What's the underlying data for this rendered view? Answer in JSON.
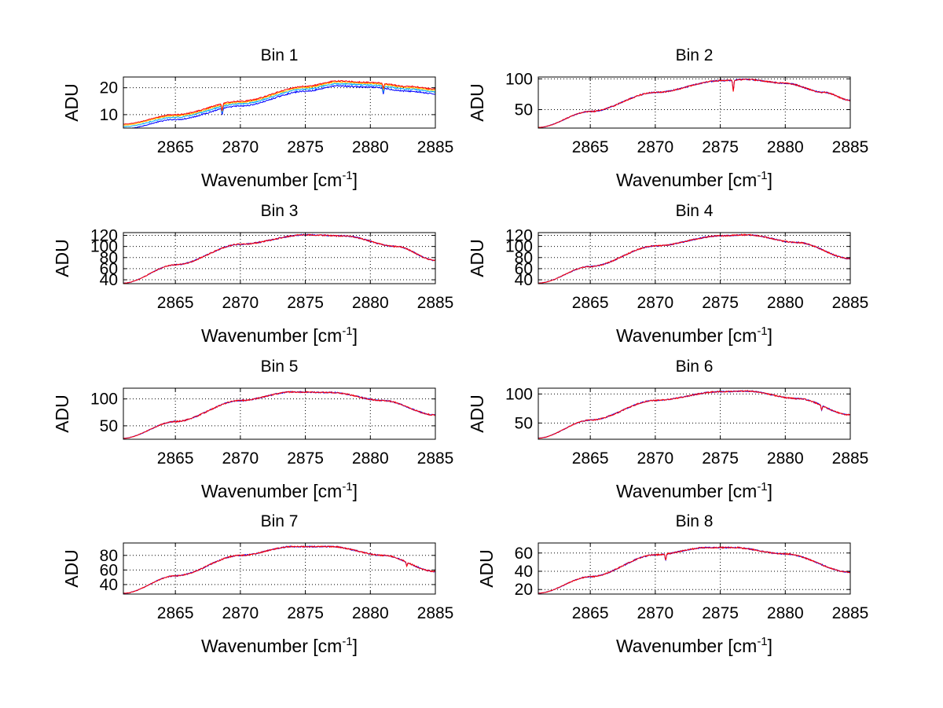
{
  "figure": {
    "background": "#ffffff",
    "grid_color": "#000000",
    "x_tick_labels": [
      "2865",
      "2870",
      "2875",
      "2880",
      "2885"
    ]
  },
  "chart_data": [
    {
      "type": "line",
      "title": "Bin 1",
      "xlabel_base": "Wavenumber [cm",
      "xlabel_sup": "-1",
      "xlabel_end": "]",
      "ylabel": "ADU",
      "xlim": [
        2861,
        2885
      ],
      "ylim": [
        5,
        24
      ],
      "xticks": [
        2865,
        2870,
        2875,
        2880,
        2885
      ],
      "yticks": [
        10,
        20
      ],
      "grid": true,
      "profile": {
        "x": [
          2861,
          2865,
          2870,
          2875,
          2877.5,
          2880,
          2883,
          2885
        ],
        "y": [
          5.5,
          9,
          14,
          19.5,
          21.5,
          21,
          19.5,
          18.5
        ]
      },
      "series": [
        {
          "name": "series 1",
          "color": "#0000ff",
          "offset": -0.8
        },
        {
          "name": "series 2",
          "color": "#00aaff",
          "offset": 0
        },
        {
          "name": "series 3",
          "color": "#ffcc00",
          "offset": 0.6
        },
        {
          "name": "series 4",
          "color": "#ff0000",
          "offset": 1.0
        }
      ],
      "dips": [
        {
          "x": 2868.6,
          "depth": 2.5
        },
        {
          "x": 2881,
          "depth": 2
        }
      ]
    },
    {
      "type": "line",
      "title": "Bin 2",
      "xlabel_base": "Wavenumber [cm",
      "xlabel_sup": "-1",
      "xlabel_end": "]",
      "ylabel": "ADU",
      "xlim": [
        2861,
        2885
      ],
      "ylim": [
        20,
        103
      ],
      "xticks": [
        2865,
        2870,
        2875,
        2880,
        2885
      ],
      "yticks": [
        50,
        100
      ],
      "grid": true,
      "profile": {
        "x": [
          2861,
          2865,
          2870,
          2875,
          2877,
          2880,
          2883,
          2885
        ],
        "y": [
          21,
          47,
          78,
          97,
          99,
          93,
          78,
          65
        ]
      },
      "series": [
        {
          "name": "series 1",
          "color": "#0000ff",
          "offset": 0
        },
        {
          "name": "series 2",
          "color": "#ff0000",
          "offset": 0
        }
      ],
      "dips": [
        {
          "x": 2876,
          "depth": 18
        }
      ]
    },
    {
      "type": "line",
      "title": "Bin 3",
      "xlabel_base": "Wavenumber [cm",
      "xlabel_sup": "-1",
      "xlabel_end": "]",
      "ylabel": "ADU",
      "xlim": [
        2861,
        2885
      ],
      "ylim": [
        33,
        125
      ],
      "xticks": [
        2865,
        2870,
        2875,
        2880,
        2885
      ],
      "yticks": [
        40,
        60,
        80,
        100,
        120
      ],
      "grid": true,
      "profile": {
        "x": [
          2861,
          2865,
          2870,
          2875,
          2878,
          2882,
          2885
        ],
        "y": [
          34,
          67,
          104,
          121,
          119,
          100,
          75
        ]
      },
      "series": [
        {
          "name": "series 1",
          "color": "#0000ff",
          "offset": 0
        },
        {
          "name": "series 2",
          "color": "#ff0000",
          "offset": 0
        }
      ],
      "dips": []
    },
    {
      "type": "line",
      "title": "Bin 4",
      "xlabel_base": "Wavenumber [cm",
      "xlabel_sup": "-1",
      "xlabel_end": "]",
      "ylabel": "ADU",
      "xlim": [
        2861,
        2885
      ],
      "ylim": [
        33,
        125
      ],
      "xticks": [
        2865,
        2870,
        2875,
        2880,
        2885
      ],
      "yticks": [
        40,
        60,
        80,
        100,
        120
      ],
      "grid": true,
      "profile": {
        "x": [
          2861,
          2865,
          2870,
          2875,
          2877,
          2881,
          2885
        ],
        "y": [
          34,
          64,
          101,
          119,
          121,
          107,
          78
        ]
      },
      "series": [
        {
          "name": "series 1",
          "color": "#0000ff",
          "offset": 0
        },
        {
          "name": "series 2",
          "color": "#ff0000",
          "offset": 0
        }
      ],
      "dips": []
    },
    {
      "type": "line",
      "title": "Bin 5",
      "xlabel_base": "Wavenumber [cm",
      "xlabel_sup": "-1",
      "xlabel_end": "]",
      "ylabel": "ADU",
      "xlim": [
        2861,
        2885
      ],
      "ylim": [
        25,
        120
      ],
      "xticks": [
        2865,
        2870,
        2875,
        2880,
        2885
      ],
      "yticks": [
        50,
        100
      ],
      "grid": true,
      "profile": {
        "x": [
          2861,
          2865,
          2870,
          2874,
          2877,
          2881,
          2885
        ],
        "y": [
          27,
          58,
          97,
          113,
          112,
          97,
          70
        ]
      },
      "series": [
        {
          "name": "series 1",
          "color": "#0000ff",
          "offset": 0
        },
        {
          "name": "series 2",
          "color": "#ff0000",
          "offset": 0
        }
      ],
      "dips": []
    },
    {
      "type": "line",
      "title": "Bin 6",
      "xlabel_base": "Wavenumber [cm",
      "xlabel_sup": "-1",
      "xlabel_end": "]",
      "ylabel": "ADU",
      "xlim": [
        2861,
        2885
      ],
      "ylim": [
        22,
        110
      ],
      "xticks": [
        2865,
        2870,
        2875,
        2880,
        2885
      ],
      "yticks": [
        50,
        100
      ],
      "grid": true,
      "profile": {
        "x": [
          2861,
          2865,
          2870,
          2875,
          2877,
          2881,
          2885
        ],
        "y": [
          24,
          55,
          89,
          104,
          105,
          92,
          64
        ]
      },
      "series": [
        {
          "name": "series 1",
          "color": "#0000ff",
          "offset": 0
        },
        {
          "name": "series 2",
          "color": "#ff0000",
          "offset": 0
        }
      ],
      "dips": [
        {
          "x": 2882.8,
          "depth": 8
        }
      ]
    },
    {
      "type": "line",
      "title": "Bin 7",
      "xlabel_base": "Wavenumber [cm",
      "xlabel_sup": "-1",
      "xlabel_end": "]",
      "ylabel": "ADU",
      "xlim": [
        2861,
        2885
      ],
      "ylim": [
        27,
        97
      ],
      "xticks": [
        2865,
        2870,
        2875,
        2880,
        2885
      ],
      "yticks": [
        40,
        60,
        80
      ],
      "grid": true,
      "profile": {
        "x": [
          2861,
          2865,
          2870,
          2874,
          2877,
          2881,
          2885
        ],
        "y": [
          28,
          52,
          80,
          92,
          92,
          80,
          58
        ]
      },
      "series": [
        {
          "name": "series 1",
          "color": "#0000ff",
          "offset": 0
        },
        {
          "name": "series 2",
          "color": "#ff0000",
          "offset": 0
        }
      ],
      "dips": [
        {
          "x": 2882.8,
          "depth": 5
        }
      ]
    },
    {
      "type": "line",
      "title": "Bin 8",
      "xlabel_base": "Wavenumber [cm",
      "xlabel_sup": "-1",
      "xlabel_end": "]",
      "ylabel": "ADU",
      "xlim": [
        2861,
        2885
      ],
      "ylim": [
        15,
        71
      ],
      "xticks": [
        2865,
        2870,
        2875,
        2880,
        2885
      ],
      "yticks": [
        20,
        40,
        60
      ],
      "grid": true,
      "profile": {
        "x": [
          2861,
          2865,
          2870,
          2874,
          2876,
          2880,
          2885
        ],
        "y": [
          16,
          34,
          58,
          66,
          66,
          59,
          39
        ]
      },
      "series": [
        {
          "name": "series 1",
          "color": "#0000ff",
          "offset": 0
        },
        {
          "name": "series 2",
          "color": "#ff0000",
          "offset": 0
        }
      ],
      "dips": [
        {
          "x": 2870.8,
          "depth": 7
        }
      ]
    }
  ]
}
